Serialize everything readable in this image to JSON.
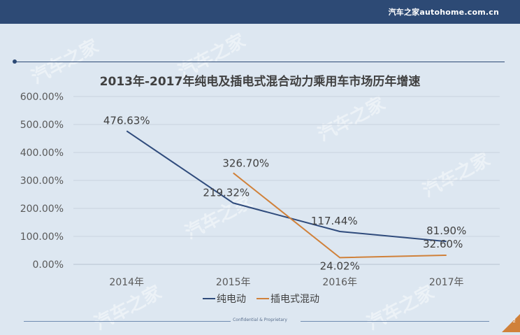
{
  "header": {
    "brand": "汽车之家autohome.com.cn"
  },
  "watermark_text": "汽车之家",
  "footer": {
    "text": "Confidential & Proprietary",
    "page_number": "2"
  },
  "colors": {
    "header_bg": "#2d4a75",
    "series_pure_ev": "#2f4b7c",
    "series_phev": "#d0813a",
    "page_badge": "#d0813a"
  },
  "chart_data": {
    "type": "line",
    "title": "2013年-2017年纯电及插电式混合动力乘用车市场历年增速",
    "categories": [
      "2014年",
      "2015年",
      "2016年",
      "2017年"
    ],
    "y_ticks": [
      "0.00%",
      "100.00%",
      "200.00%",
      "300.00%",
      "400.00%",
      "500.00%",
      "600.00%"
    ],
    "ylim": [
      0,
      600
    ],
    "grid": true,
    "legend_position": "bottom",
    "series": [
      {
        "name": "纯电动",
        "color": "#2f4b7c",
        "values": [
          476.63,
          219.32,
          117.44,
          81.9
        ],
        "labels": [
          "476.63%",
          "219.32%",
          "117.44%",
          "81.90%"
        ]
      },
      {
        "name": "插电式混动",
        "color": "#d0813a",
        "values": [
          null,
          326.7,
          24.02,
          32.6
        ],
        "labels": [
          "",
          "326.70%",
          "24.02%",
          "32.60%"
        ]
      }
    ]
  }
}
